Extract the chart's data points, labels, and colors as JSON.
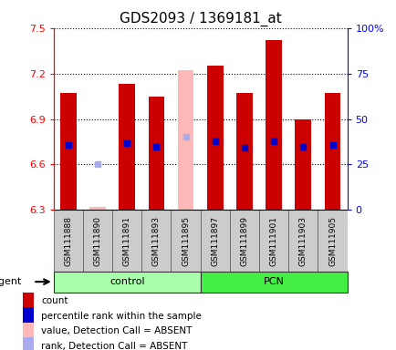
{
  "title": "GDS2093 / 1369181_at",
  "samples": [
    "GSM111888",
    "GSM111890",
    "GSM111891",
    "GSM111893",
    "GSM111895",
    "GSM111897",
    "GSM111899",
    "GSM111901",
    "GSM111903",
    "GSM111905"
  ],
  "ylim_left": [
    6.3,
    7.5
  ],
  "ylim_right": [
    0,
    100
  ],
  "yticks_left": [
    6.3,
    6.6,
    6.9,
    7.2,
    7.5
  ],
  "yticks_right": [
    0,
    25,
    50,
    75,
    100
  ],
  "ytick_labels_right": [
    "0",
    "25",
    "50",
    "75",
    "100%"
  ],
  "bar_bottom": 6.3,
  "bar_tops": [
    7.07,
    6.32,
    7.13,
    7.05,
    7.22,
    7.25,
    7.07,
    7.42,
    6.9,
    7.07
  ],
  "bar_absent": [
    false,
    true,
    false,
    false,
    true,
    false,
    false,
    false,
    false,
    false
  ],
  "rank_values": [
    6.73,
    6.605,
    6.74,
    6.72,
    6.785,
    6.755,
    6.71,
    6.755,
    6.72,
    6.73
  ],
  "rank_absent": [
    false,
    true,
    false,
    false,
    true,
    false,
    false,
    false,
    false,
    false
  ],
  "bar_width": 0.55,
  "bar_color_normal": "#cc0000",
  "bar_color_absent": "#ffb8b8",
  "rank_color_normal": "#0000cc",
  "rank_color_absent": "#aaaaee",
  "control_color": "#aaffaa",
  "pcn_color": "#44ee44",
  "legend_items": [
    {
      "color": "#cc0000",
      "label": "count"
    },
    {
      "color": "#0000cc",
      "label": "percentile rank within the sample"
    },
    {
      "color": "#ffb8b8",
      "label": "value, Detection Call = ABSENT"
    },
    {
      "color": "#aaaaee",
      "label": "rank, Detection Call = ABSENT"
    }
  ]
}
